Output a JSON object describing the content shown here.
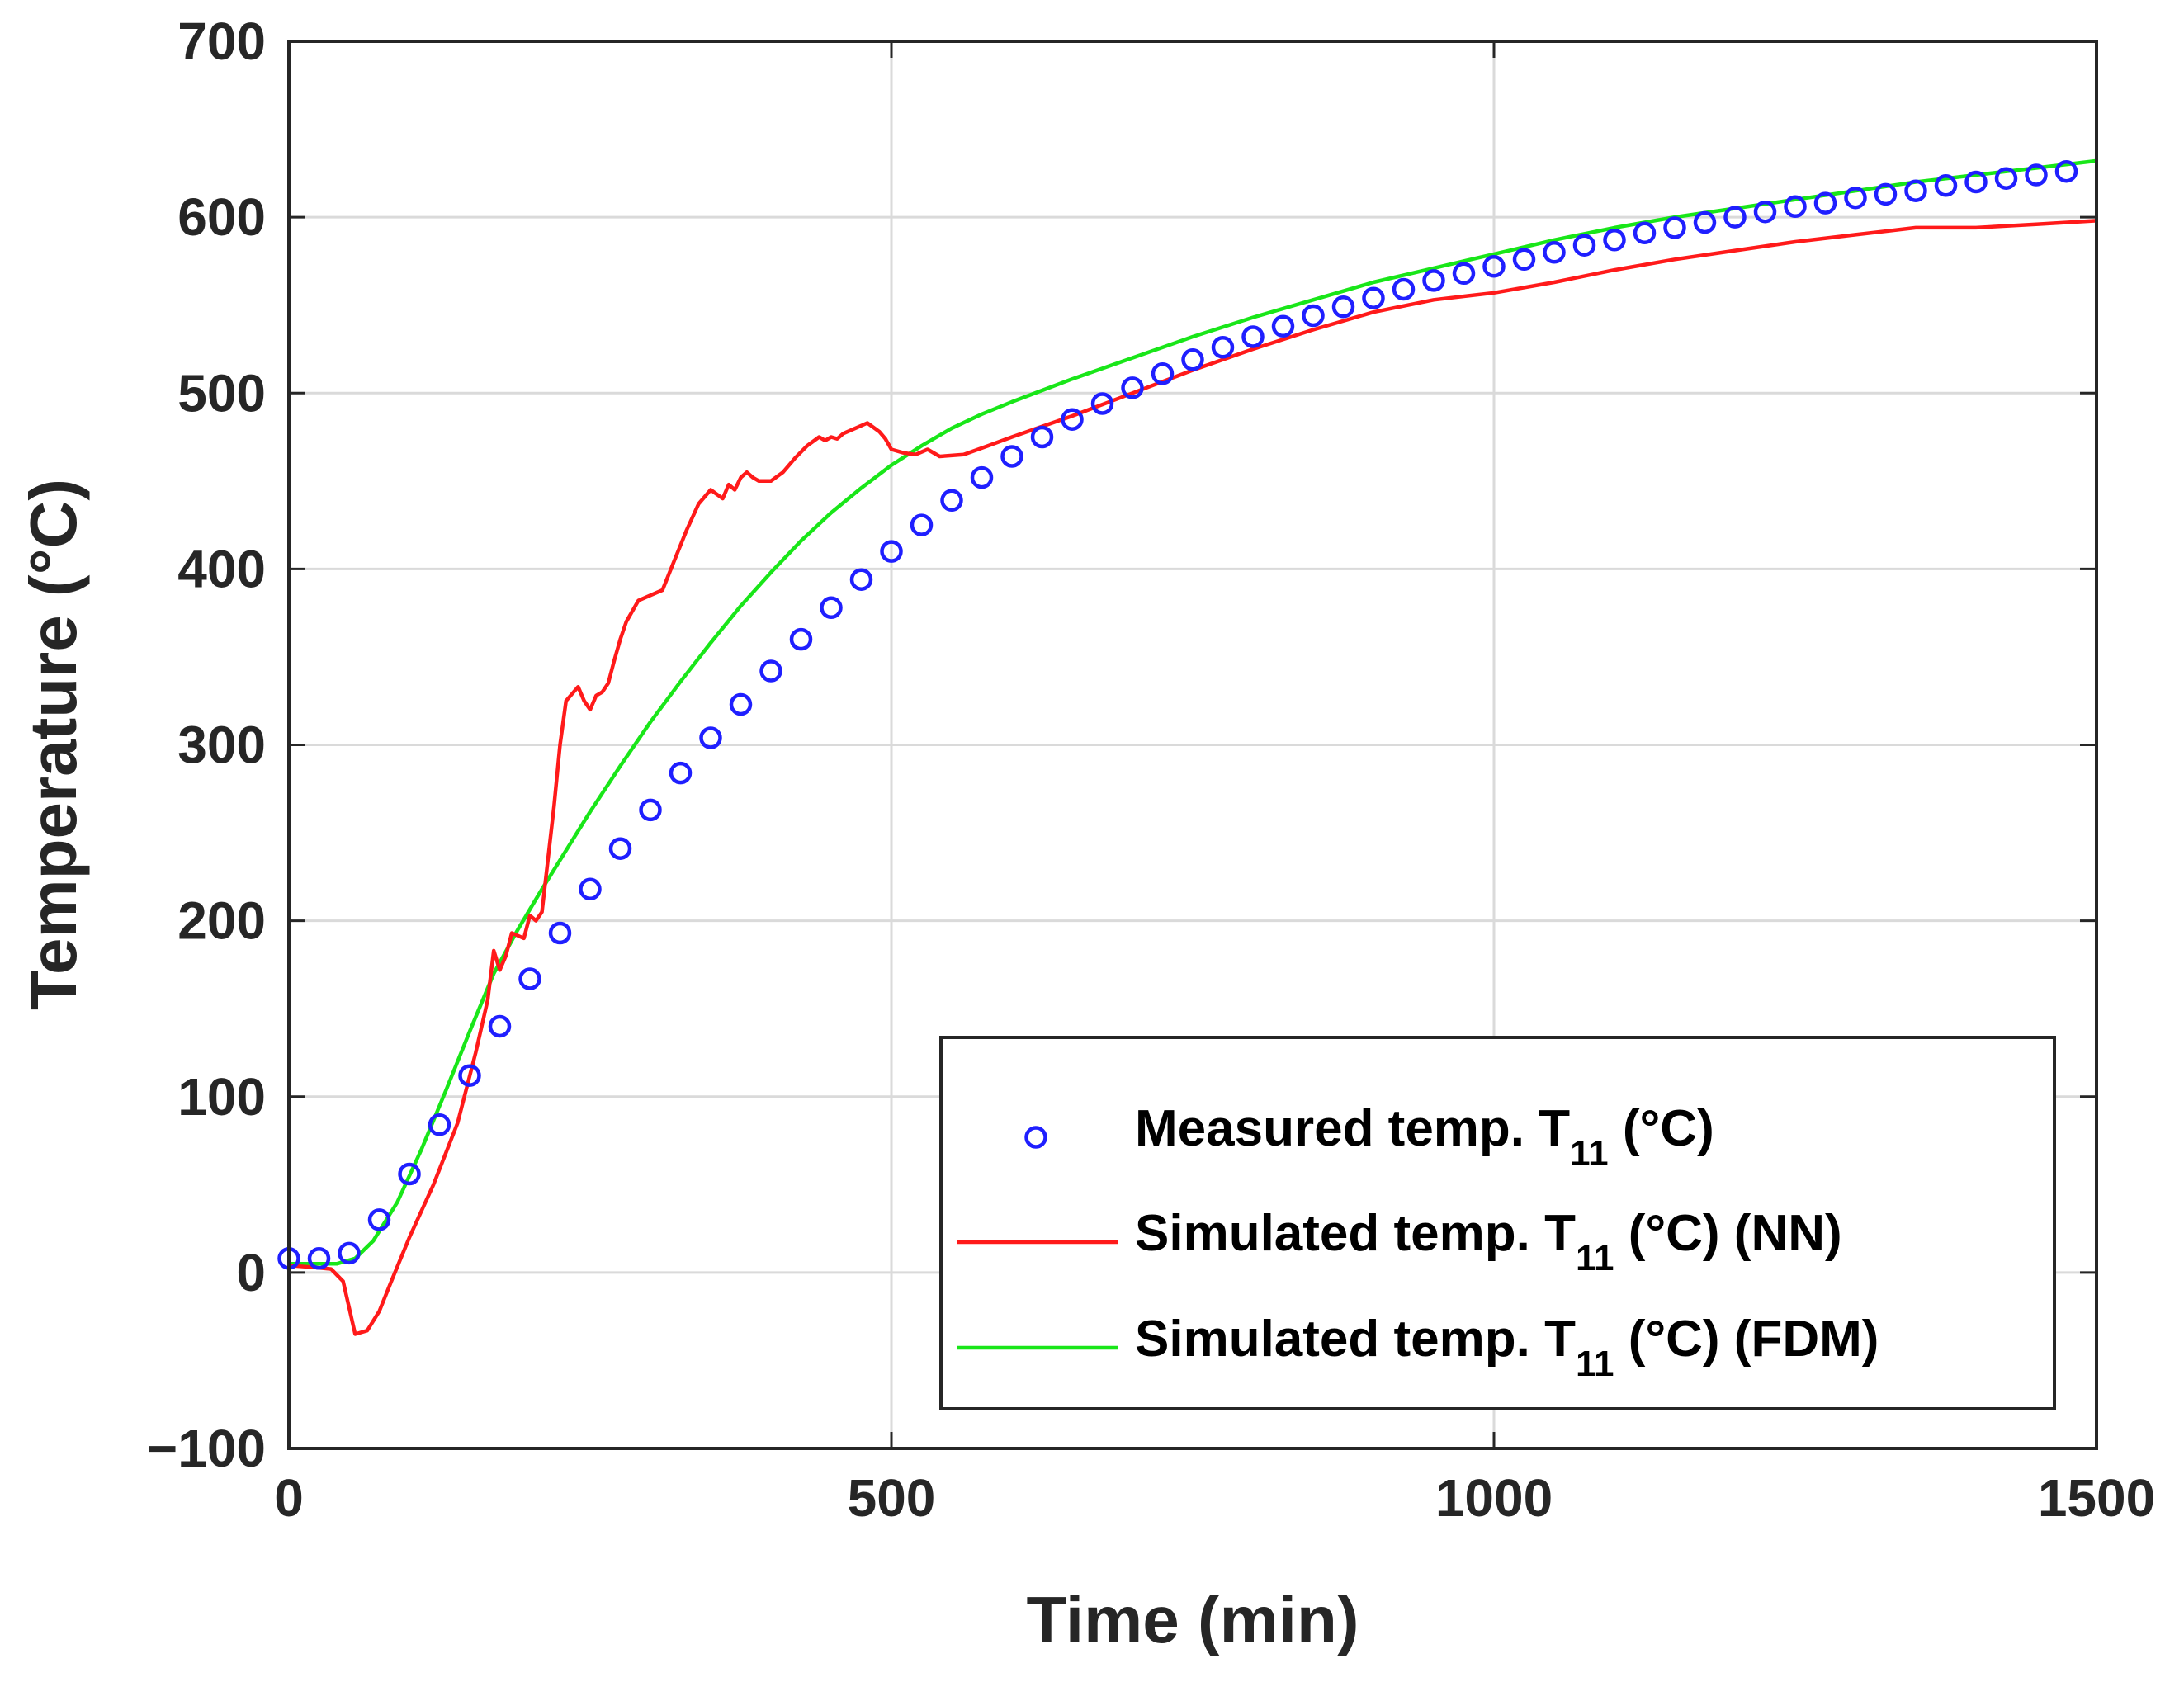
{
  "chart_data": {
    "type": "line",
    "title": "",
    "xlabel": "Time (min)",
    "ylabel": "Temperature (°C)",
    "xlim": [
      0,
      1500
    ],
    "ylim": [
      -100,
      700
    ],
    "xticks": [
      0,
      500,
      1000,
      1500
    ],
    "yticks": [
      -100,
      0,
      100,
      200,
      300,
      400,
      500,
      600,
      700
    ],
    "xtick_labels": [
      "0",
      "500",
      "1000",
      "1500"
    ],
    "ytick_labels": [
      "−100",
      "0",
      "100",
      "200",
      "300",
      "400",
      "500",
      "600",
      "700"
    ],
    "grid": true,
    "legend_position": "bottom-right",
    "series": [
      {
        "name": "Measured temp. T11 (°C)",
        "legend_label": "Measured temp. T",
        "legend_subscript": "11",
        "legend_suffix": " (°C)",
        "style": "markers-circle",
        "color": "#1f1fff",
        "x": [
          0,
          25,
          50,
          75,
          100,
          125,
          150,
          175,
          200,
          225,
          250,
          275,
          300,
          325,
          350,
          375,
          400,
          425,
          450,
          475,
          500,
          525,
          550,
          575,
          600,
          625,
          650,
          675,
          700,
          725,
          750,
          775,
          800,
          825,
          850,
          875,
          900,
          925,
          950,
          975,
          1000,
          1025,
          1050,
          1075,
          1100,
          1125,
          1150,
          1175,
          1200,
          1225,
          1250,
          1275,
          1300,
          1325,
          1350,
          1375,
          1400,
          1425,
          1450,
          1475
        ],
        "y": [
          8,
          8,
          11,
          30,
          56,
          84,
          112,
          140,
          167,
          193,
          218,
          241,
          263,
          284,
          304,
          323,
          342,
          360,
          378,
          394,
          410,
          425,
          439,
          452,
          464,
          475,
          485,
          494,
          503,
          511,
          519,
          526,
          532,
          538,
          544,
          549,
          554,
          559,
          564,
          568,
          572,
          576,
          580,
          584,
          587,
          591,
          594,
          597,
          600,
          603,
          606,
          608,
          611,
          613,
          615,
          618,
          620,
          622,
          624,
          626
        ]
      },
      {
        "name": "Simulated temp. T11 (°C) (NN)",
        "legend_label": "Simulated temp. T",
        "legend_subscript": "11",
        "legend_suffix": " (°C) (NN)",
        "style": "line",
        "color": "#ff1a1a",
        "x": [
          0,
          20,
          35,
          45,
          55,
          65,
          75,
          85,
          100,
          120,
          140,
          155,
          165,
          170,
          175,
          180,
          185,
          195,
          200,
          205,
          210,
          220,
          225,
          230,
          240,
          245,
          250,
          255,
          260,
          265,
          270,
          275,
          280,
          290,
          300,
          310,
          320,
          330,
          340,
          350,
          360,
          365,
          370,
          375,
          380,
          385,
          390,
          395,
          400,
          410,
          420,
          430,
          440,
          445,
          450,
          455,
          460,
          470,
          480,
          490,
          495,
          500,
          510,
          520,
          530,
          540,
          560,
          580,
          600,
          650,
          700,
          750,
          800,
          850,
          900,
          950,
          1000,
          1050,
          1100,
          1150,
          1200,
          1250,
          1300,
          1350,
          1400,
          1450,
          1500
        ],
        "y": [
          4,
          3,
          2,
          -5,
          -35,
          -33,
          -22,
          -5,
          20,
          50,
          85,
          125,
          155,
          183,
          172,
          180,
          193,
          190,
          203,
          200,
          205,
          265,
          300,
          325,
          333,
          325,
          320,
          328,
          330,
          335,
          348,
          360,
          370,
          382,
          385,
          388,
          405,
          422,
          437,
          445,
          440,
          448,
          445,
          452,
          455,
          452,
          450,
          450,
          450,
          455,
          463,
          470,
          475,
          473,
          475,
          474,
          477,
          480,
          483,
          478,
          474,
          468,
          466,
          465,
          468,
          464,
          465,
          470,
          475,
          487,
          500,
          513,
          525,
          536,
          546,
          553,
          557,
          563,
          570,
          576,
          581,
          586,
          590,
          594,
          594,
          596,
          598
        ]
      },
      {
        "name": "Simulated temp. T11 (°C) (FDM)",
        "legend_label": "Simulated temp. T",
        "legend_subscript": "11",
        "legend_suffix": " (°C) (FDM)",
        "style": "line",
        "color": "#19e619",
        "x": [
          0,
          20,
          40,
          55,
          70,
          90,
          110,
          130,
          150,
          170,
          190,
          210,
          230,
          250,
          275,
          300,
          325,
          350,
          375,
          400,
          425,
          450,
          475,
          500,
          525,
          550,
          575,
          600,
          650,
          700,
          750,
          800,
          850,
          900,
          950,
          1000,
          1050,
          1100,
          1150,
          1200,
          1250,
          1300,
          1350,
          1400,
          1450,
          1500
        ],
        "y": [
          5,
          5,
          5,
          8,
          18,
          40,
          70,
          103,
          137,
          170,
          195,
          218,
          240,
          262,
          288,
          313,
          336,
          358,
          379,
          398,
          416,
          432,
          446,
          459,
          470,
          480,
          488,
          495,
          508,
          520,
          532,
          543,
          553,
          563,
          571,
          579,
          587,
          594,
          600,
          605,
          610,
          615,
          620,
          624,
          628,
          632
        ]
      }
    ]
  }
}
